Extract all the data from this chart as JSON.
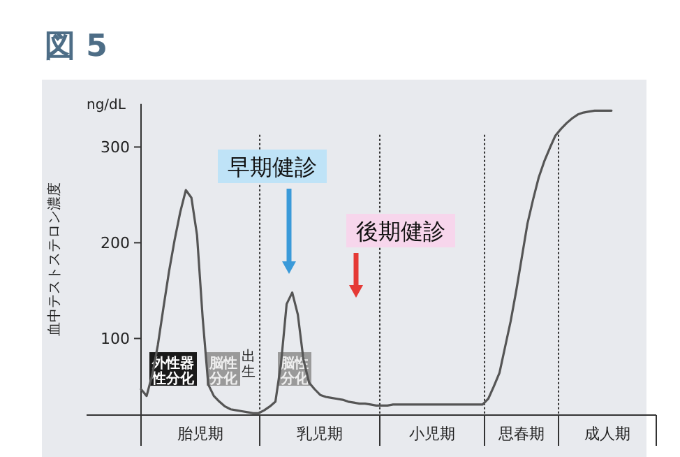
{
  "chart_data": {
    "type": "line",
    "title": "図 5",
    "ylabel": "血中テストステロン濃度",
    "ylim": [
      20,
      345
    ],
    "yticks": [
      100,
      200,
      300
    ],
    "tick_labels": "y",
    "marker": "none",
    "line_style": "solid",
    "categories": [
      null,
      null,
      null,
      null,
      null,
      null,
      null,
      null,
      null,
      null,
      null,
      null,
      null,
      null,
      null,
      null,
      null,
      null,
      null,
      null,
      null,
      null,
      null,
      null,
      null,
      null,
      null,
      null,
      null,
      null,
      null,
      null,
      null,
      null,
      null,
      null,
      null,
      null,
      null,
      null,
      null,
      null,
      null,
      null,
      null,
      null,
      null,
      null,
      null,
      null,
      null,
      null,
      null,
      null,
      null,
      null,
      null,
      null,
      null,
      null,
      null,
      null,
      null,
      null,
      null,
      null,
      null,
      null,
      null,
      null,
      null,
      null,
      null,
      null,
      null,
      null,
      null,
      null,
      null,
      null,
      null,
      null,
      null,
      null,
      null,
      null,
      null,
      null,
      null,
      null,
      null,
      null,
      null
    ],
    "series": [
      {
        "color": "#555555",
        "values": [
          47,
          40,
          62,
          93,
          132,
          170,
          203,
          232,
          255,
          247,
          208,
          122,
          52,
          40,
          34,
          29,
          26,
          25,
          24,
          23,
          22,
          22,
          25,
          29,
          34,
          74,
          136,
          148,
          125,
          78,
          54,
          47,
          41,
          39,
          38,
          37,
          36,
          34,
          33,
          32,
          32,
          31,
          30,
          30,
          30,
          31,
          31,
          31,
          31,
          31,
          31,
          31,
          31,
          31,
          31,
          31,
          31,
          31,
          31,
          31,
          31,
          31,
          37,
          50,
          64,
          91,
          118,
          150,
          185,
          220,
          245,
          268,
          285,
          299,
          312,
          319,
          325,
          330,
          334,
          336,
          337,
          338,
          338,
          338,
          338,
          null,
          null,
          null,
          null,
          null,
          null,
          null,
          null
        ]
      }
    ],
    "annotations": [
      "ng/dL",
      "早期健診",
      "後期健診",
      "外性器性分化",
      "脳性分化",
      "出生",
      "脳性分化",
      "胎児期",
      "乳児期",
      "小児期",
      "思春期",
      "成人期"
    ]
  }
}
